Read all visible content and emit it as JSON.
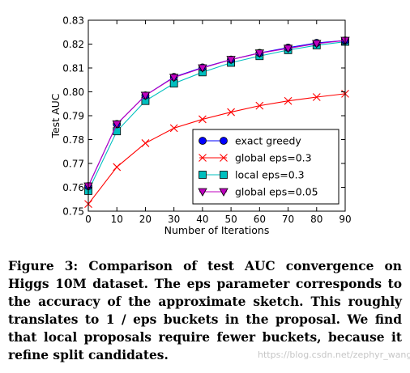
{
  "chart_data": {
    "type": "line",
    "title": "",
    "xlabel": "Number of Iterations",
    "ylabel": "Test AUC",
    "x": [
      0,
      10,
      20,
      30,
      40,
      50,
      60,
      70,
      80,
      90
    ],
    "xlim": [
      0,
      90
    ],
    "ylim": [
      0.75,
      0.83
    ],
    "x_ticks": [
      "0",
      "10",
      "20",
      "30",
      "40",
      "50",
      "60",
      "70",
      "80",
      "90"
    ],
    "y_ticks": [
      "0.75",
      "0.76",
      "0.77",
      "0.78",
      "0.79",
      "0.80",
      "0.81",
      "0.82",
      "0.83"
    ],
    "grid": false,
    "legend_position": "lower-right",
    "series": [
      {
        "name": "exact greedy",
        "color": "#0000ff",
        "marker": "circle",
        "values": [
          0.7605,
          0.7865,
          0.7985,
          0.8062,
          0.8102,
          0.8135,
          0.8163,
          0.8185,
          0.8205,
          0.8215
        ]
      },
      {
        "name": "global eps=0.3",
        "color": "#ff0000",
        "marker": "x",
        "values": [
          0.753,
          0.7685,
          0.7785,
          0.7848,
          0.7885,
          0.7915,
          0.7942,
          0.7962,
          0.7978,
          0.7992
        ]
      },
      {
        "name": "local eps=0.3",
        "color": "#00bfbf",
        "marker": "square",
        "values": [
          0.7585,
          0.7835,
          0.7962,
          0.8035,
          0.8082,
          0.8122,
          0.815,
          0.8175,
          0.8195,
          0.821
        ]
      },
      {
        "name": "global eps=0.05",
        "color": "#bf00bf",
        "marker": "triangle-down",
        "values": [
          0.7605,
          0.7865,
          0.7985,
          0.806,
          0.81,
          0.8135,
          0.8162,
          0.8182,
          0.8202,
          0.8215
        ]
      }
    ]
  },
  "caption": "Figure 3: Comparison of test AUC convergence on Higgs 10M dataset. The eps parameter corresponds to the accuracy of the approximate sketch. This roughly translates to 1 / eps buckets in the proposal. We find that local proposals require fewer buckets, because it refine split candidates.",
  "watermark": "https://blog.csdn.net/zephyr_wang"
}
